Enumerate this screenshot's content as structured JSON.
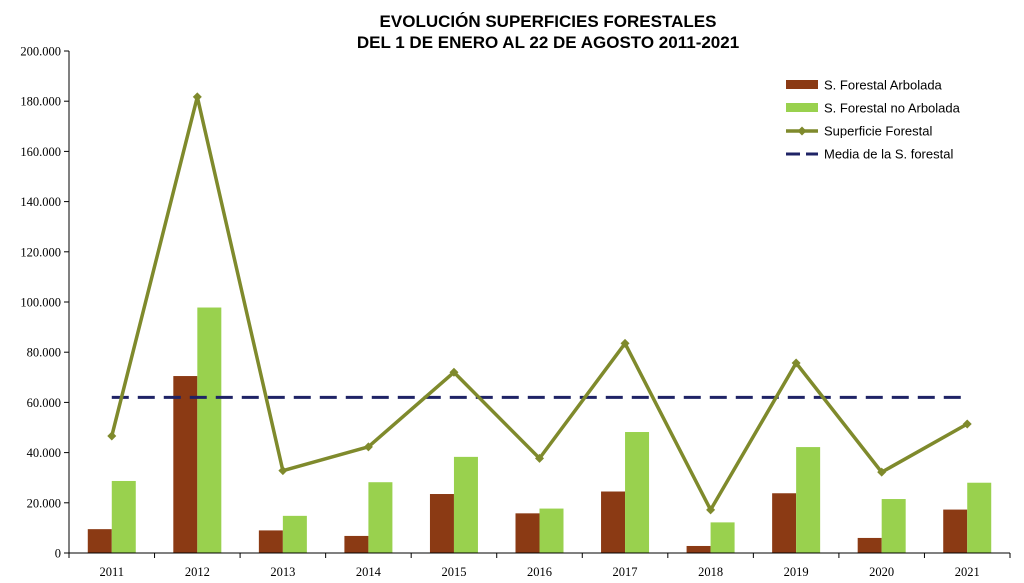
{
  "chart_data": {
    "type": "bar",
    "title_lines": [
      "EVOLUCIÓN SUPERFICIES FORESTALES",
      "DEL 1 DE ENERO AL 22 DE AGOSTO 2011-2021"
    ],
    "xlabel": "",
    "ylabel": "",
    "ylim": [
      0,
      200000
    ],
    "y_ticks": [
      0,
      20000,
      40000,
      60000,
      80000,
      100000,
      120000,
      140000,
      160000,
      180000,
      200000
    ],
    "y_tick_labels": [
      "0",
      "20.000",
      "40.000",
      "60.000",
      "80.000",
      "100.000",
      "120.000",
      "140.000",
      "160.000",
      "180.000",
      "200.000"
    ],
    "categories": [
      "2011",
      "2012",
      "2013",
      "2014",
      "2015",
      "2016",
      "2017",
      "2018",
      "2019",
      "2020",
      "2021"
    ],
    "grid": false,
    "legend_position": "top-right",
    "series": [
      {
        "name": "S. Forestal Arbolada",
        "kind": "bar",
        "color": "#8B3A14",
        "values": [
          9500,
          70500,
          9000,
          6800,
          23500,
          15800,
          24500,
          2800,
          23800,
          6000,
          17300
        ]
      },
      {
        "name": "S. Forestal no Arbolada",
        "kind": "bar",
        "color": "#99D14E",
        "values": [
          28700,
          97800,
          14800,
          28200,
          38300,
          17700,
          48200,
          12200,
          42200,
          21500,
          28000
        ]
      },
      {
        "name": "Superficie Forestal",
        "kind": "line",
        "marker": "diamond",
        "color": "#7F8A2C",
        "values": [
          46600,
          181700,
          32800,
          42300,
          72000,
          37700,
          83500,
          17200,
          75700,
          32200,
          51400
        ]
      },
      {
        "name": "Media de la S. forestal",
        "kind": "dashed-line",
        "color": "#1F2366",
        "values": [
          62000,
          62000,
          62000,
          62000,
          62000,
          62000,
          62000,
          62000,
          62000,
          62000,
          62000
        ]
      }
    ]
  }
}
